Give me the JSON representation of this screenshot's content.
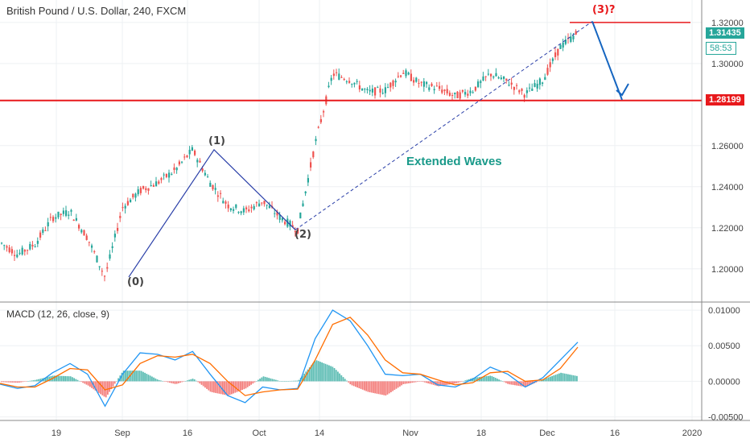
{
  "legend": {
    "main": "British Pound / U.S. Dollar, 240, FXCM",
    "macd": "MACD (12, 26, close, 9)"
  },
  "tags": {
    "last_price": "1.31435",
    "timer": "58:53",
    "level": "1.28199"
  },
  "annotations": {
    "w0": "(0)",
    "w1": "(1)",
    "w2": "(2)",
    "w3": "(3)?",
    "extended": "Extended Waves"
  },
  "colors": {
    "up": "#26a69a",
    "down": "#ef5350",
    "level": "#e8191c",
    "wave": "#2a3fa8",
    "arrow": "#1565c0",
    "macd": "#2196f3",
    "signal": "#ff6d00"
  },
  "chart_data": [
    {
      "type": "line",
      "title": "British Pound / U.S. Dollar, 240, FXCM",
      "x_ticks": [
        "19",
        "Sep",
        "16",
        "Oct",
        "14",
        "Nov",
        "18",
        "Dec",
        "16",
        "2020"
      ],
      "y_ticks": [
        "1.20000",
        "1.22000",
        "1.24000",
        "1.26000",
        "1.30000",
        "1.32000"
      ],
      "ylim": [
        1.185,
        1.327
      ],
      "horizontal_levels": [
        1.28199,
        1.32
      ],
      "series": [
        {
          "x": [
            "Aug 12",
            "Aug 16",
            "Aug 19",
            "Aug 23",
            "Aug 27",
            "Aug 30",
            "Sep 3",
            "Sep 6",
            "Sep 10",
            "Sep 13",
            "Sep 17",
            "Sep 20",
            "Sep 24",
            "Sep 27",
            "Oct 1",
            "Oct 4",
            "Oct 8",
            "Oct 11",
            "Oct 15",
            "Oct 18",
            "Oct 22",
            "Oct 25",
            "Oct 29",
            "Nov 1",
            "Nov 5",
            "Nov 8",
            "Nov 12",
            "Nov 15",
            "Nov 19",
            "Nov 22",
            "Nov 26",
            "Nov 29",
            "Dec 3",
            "Dec 6"
          ],
          "values": [
            1.213,
            1.207,
            1.212,
            1.225,
            1.228,
            1.215,
            1.196,
            1.23,
            1.238,
            1.242,
            1.248,
            1.258,
            1.242,
            1.231,
            1.228,
            1.233,
            1.225,
            1.219,
            1.261,
            1.295,
            1.292,
            1.286,
            1.287,
            1.296,
            1.29,
            1.288,
            1.284,
            1.287,
            1.295,
            1.291,
            1.285,
            1.292,
            1.308,
            1.315
          ]
        }
      ]
    },
    {
      "type": "line",
      "title": "MACD (12, 26, close, 9)",
      "y_ticks": [
        "-0.00500",
        "0.00000",
        "0.00500",
        "0.01000"
      ],
      "ylim": [
        -0.0055,
        0.0108
      ],
      "series": [
        {
          "name": "MACD",
          "values": [
            -0.0004,
            -0.001,
            -0.0006,
            0.0012,
            0.0025,
            0.001,
            -0.0035,
            0.001,
            0.004,
            0.0038,
            0.003,
            0.0042,
            0.001,
            -0.002,
            -0.003,
            -0.0008,
            -0.0012,
            -0.001,
            0.006,
            0.01,
            0.0085,
            0.005,
            0.001,
            0.0008,
            0.001,
            -0.0005,
            -0.0008,
            0.0003,
            0.002,
            0.001,
            -0.0008,
            0.0005,
            0.003,
            0.0055
          ]
        },
        {
          "name": "Signal",
          "values": [
            -0.0003,
            -0.0008,
            -0.0008,
            0.0004,
            0.0018,
            0.0016,
            -0.0012,
            -0.0005,
            0.0025,
            0.0036,
            0.0034,
            0.0038,
            0.0025,
            0.0,
            -0.002,
            -0.0015,
            -0.0012,
            -0.0011,
            0.003,
            0.008,
            0.009,
            0.0065,
            0.003,
            0.0012,
            0.001,
            0.0002,
            -0.0005,
            -0.0002,
            0.0012,
            0.0014,
            0.0,
            0.0002,
            0.0018,
            0.0048
          ]
        }
      ]
    }
  ]
}
